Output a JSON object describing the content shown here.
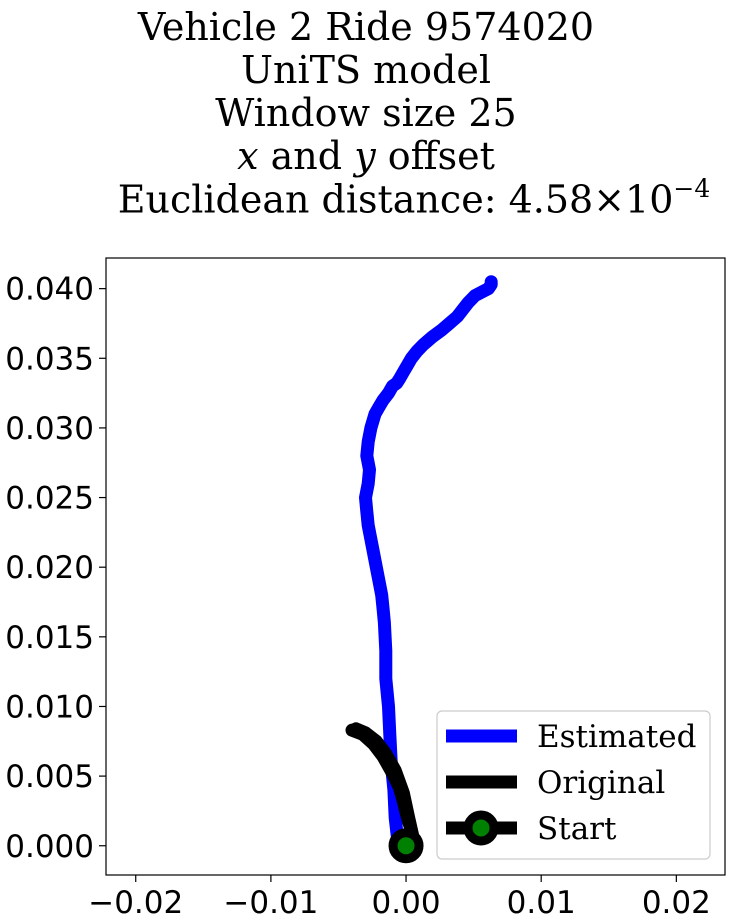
{
  "title": {
    "line1": "Vehicle 2 Ride 9574020",
    "line2": "UniTS model",
    "line3": "Window size 25",
    "line4_x": "x",
    "line4_and": " and ",
    "line4_y": "y",
    "line4_rest": " offset",
    "line5_prefix": "Euclidean distance: 4.58×10",
    "line5_exp": "−4"
  },
  "chart_data": {
    "type": "line",
    "title": "Vehicle 2 Ride 9574020 / UniTS model / Window size 25 / x and y offset / Euclidean distance: 4.58×10⁻⁴",
    "xlabel": "",
    "ylabel": "",
    "xlim": [
      -0.0222,
      0.0236
    ],
    "ylim": [
      -0.0021,
      0.0422
    ],
    "xticks": [
      "−0.02",
      "−0.01",
      "0.00",
      "0.01",
      "0.02"
    ],
    "xtick_values": [
      -0.02,
      -0.01,
      0.0,
      0.01,
      0.02
    ],
    "yticks": [
      "0.000",
      "0.005",
      "0.010",
      "0.015",
      "0.020",
      "0.025",
      "0.030",
      "0.035",
      "0.040"
    ],
    "ytick_values": [
      0.0,
      0.005,
      0.01,
      0.015,
      0.02,
      0.025,
      0.03,
      0.035,
      0.04
    ],
    "grid": false,
    "legend_position": "lower-right",
    "series": [
      {
        "name": "Estimated",
        "color": "#0000ff",
        "x": [
          -0.0006,
          -0.0008,
          -0.0009,
          -0.0011,
          -0.0012,
          -0.0013,
          -0.0015,
          -0.0015,
          -0.0016,
          -0.0017,
          -0.0018,
          -0.002,
          -0.0022,
          -0.0024,
          -0.0026,
          -0.0028,
          -0.0029,
          -0.003,
          -0.0028,
          -0.0027,
          -0.0029,
          -0.0028,
          -0.0026,
          -0.0023,
          -0.002,
          -0.0017,
          -0.0013,
          -0.001,
          -0.0007,
          -0.0005,
          -0.0002,
          0.0001,
          0.0004,
          0.0008,
          0.0013,
          0.0019,
          0.0026,
          0.0032,
          0.0038,
          0.0042,
          0.0046,
          0.0051,
          0.0057,
          0.0061,
          0.0063,
          0.0063
        ],
        "y": [
          0.0003,
          0.002,
          0.004,
          0.006,
          0.008,
          0.01,
          0.012,
          0.014,
          0.016,
          0.017,
          0.018,
          0.019,
          0.02,
          0.021,
          0.022,
          0.023,
          0.024,
          0.025,
          0.026,
          0.027,
          0.028,
          0.029,
          0.03,
          0.031,
          0.0315,
          0.032,
          0.0325,
          0.033,
          0.0332,
          0.0335,
          0.034,
          0.0345,
          0.035,
          0.0355,
          0.036,
          0.0365,
          0.037,
          0.0375,
          0.038,
          0.0385,
          0.039,
          0.0395,
          0.0398,
          0.04,
          0.0403,
          0.0405
        ]
      },
      {
        "name": "Original",
        "color": "#000000",
        "x": [
          -0.004,
          -0.0032,
          -0.0024,
          -0.0017,
          -0.001,
          -0.0005,
          -0.0002,
          0.0,
          0.0002,
          0.0004,
          0.0005,
          0.0002,
          -0.0002,
          -0.0008,
          -0.0015,
          -0.0022,
          -0.003,
          -0.0037
        ],
        "y": [
          0.0083,
          0.008,
          0.0073,
          0.0064,
          0.0052,
          0.0042,
          0.0032,
          0.0024,
          0.0017,
          0.0011,
          0.0007,
          0.002,
          0.0038,
          0.0054,
          0.0066,
          0.0075,
          0.0081,
          0.0084
        ]
      }
    ],
    "start_point": {
      "name": "Start",
      "x": 0.0,
      "y": 0.0,
      "marker_edge_color": "#000000",
      "marker_face_color": "#008000"
    }
  }
}
